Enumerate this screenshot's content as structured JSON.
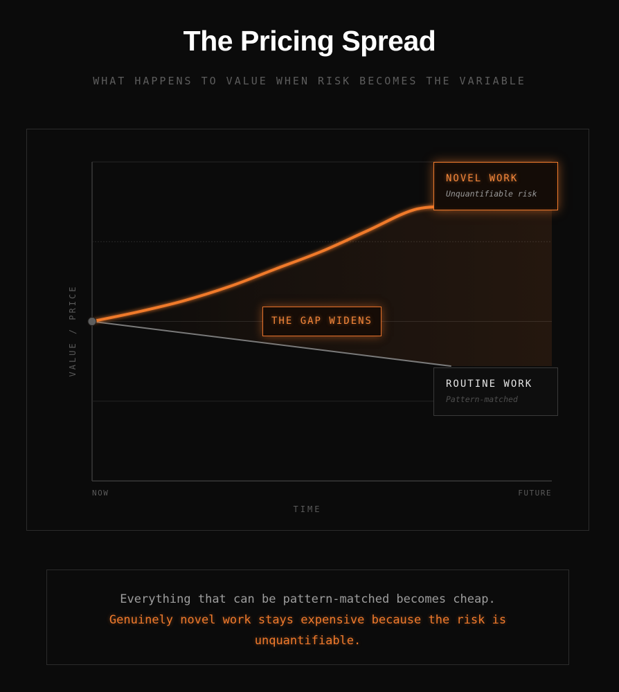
{
  "header": {
    "title": "The Pricing Spread",
    "subtitle": "WHAT HAPPENS TO VALUE WHEN RISK BECOMES THE VARIABLE"
  },
  "chart_data": {
    "type": "line",
    "xlabel": "TIME",
    "ylabel": "VALUE / PRICE",
    "x_tick_labels": [
      "NOW",
      "FUTURE"
    ],
    "grid": true,
    "xlim": [
      0,
      1
    ],
    "ylim": [
      0,
      1
    ],
    "series": [
      {
        "name": "NOVEL WORK",
        "sub": "Unquantifiable risk",
        "color": "#f07a2c",
        "x": [
          0,
          0.1,
          0.2,
          0.3,
          0.4,
          0.5,
          0.6,
          0.7,
          0.78
        ],
        "y": [
          0.5,
          0.53,
          0.565,
          0.61,
          0.665,
          0.72,
          0.785,
          0.85,
          0.86
        ]
      },
      {
        "name": "ROUTINE WORK",
        "sub": "Pattern-matched",
        "color": "#7a7a7a",
        "x": [
          0,
          0.78
        ],
        "y": [
          0.5,
          0.36
        ]
      }
    ],
    "annotations": [
      {
        "text": "THE GAP WIDENS"
      }
    ]
  },
  "footer": {
    "line1": "Everything that can be pattern-matched becomes cheap.",
    "line2": "Genuinely novel work stays expensive because the risk is unquantifiable."
  },
  "colors": {
    "background": "#0b0b0b",
    "accent": "#f07a2c",
    "muted": "#5a5a5a"
  }
}
